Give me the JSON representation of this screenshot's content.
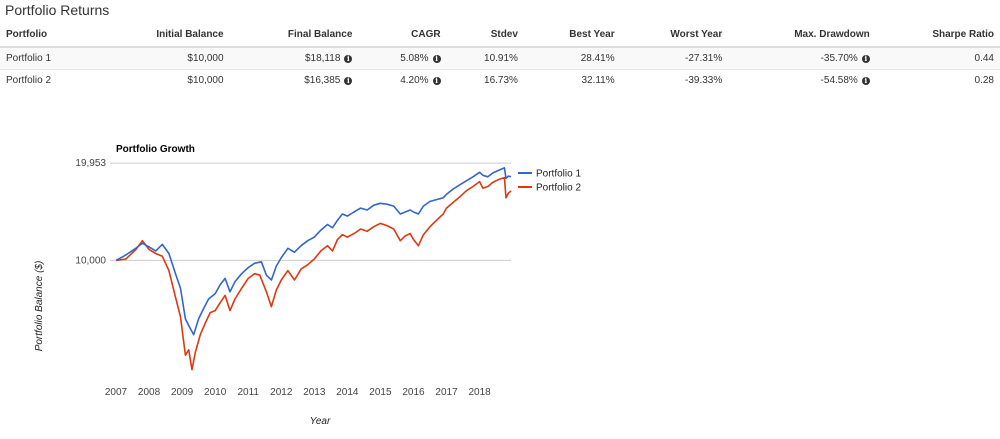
{
  "page_title": "Portfolio Returns",
  "table": {
    "headers": [
      "Portfolio",
      "Initial Balance",
      "Final Balance",
      "CAGR",
      "Stdev",
      "Best Year",
      "Worst Year",
      "Max. Drawdown",
      "Sharpe Ratio"
    ],
    "rows": [
      {
        "portfolio": "Portfolio 1",
        "initial": "$10,000",
        "final": "$18,118",
        "cagr": "5.08%",
        "stdev": "10.91%",
        "best": "28.41%",
        "worst": "-27.31%",
        "drawdown": "-35.70%",
        "sharpe": "0.44"
      },
      {
        "portfolio": "Portfolio 2",
        "initial": "$10,000",
        "final": "$16,385",
        "cagr": "4.20%",
        "stdev": "16.73%",
        "best": "32.11%",
        "worst": "-39.33%",
        "drawdown": "-54.58%",
        "sharpe": "0.28"
      }
    ],
    "info_icon": "info-circle-icon"
  },
  "chart_data": {
    "type": "line",
    "title": "Portfolio Growth",
    "xlabel": "Year",
    "ylabel": "Portfolio Balance ($)",
    "y_scale": "log",
    "ylim": [
      4400,
      20400
    ],
    "xlim": [
      2007.0,
      2018.95
    ],
    "y_ticks": [
      10000,
      19953
    ],
    "y_tick_labels": [
      "10,000",
      "19,953"
    ],
    "x_tick_labels": [
      "2007",
      "2008",
      "2009",
      "2010",
      "2011",
      "2012",
      "2013",
      "2014",
      "2015",
      "2016",
      "2017",
      "2018"
    ],
    "grid": true,
    "legend_position": "right",
    "series": [
      {
        "name": "Portfolio 1",
        "color": "#3366cc",
        "points": [
          [
            2007.0,
            10000
          ],
          [
            2007.3,
            10400
          ],
          [
            2007.6,
            10900
          ],
          [
            2007.8,
            11300
          ],
          [
            2008.0,
            11000
          ],
          [
            2008.2,
            10700
          ],
          [
            2008.4,
            11200
          ],
          [
            2008.6,
            10500
          ],
          [
            2008.8,
            9100
          ],
          [
            2008.95,
            8200
          ],
          [
            2009.1,
            6600
          ],
          [
            2009.2,
            6300
          ],
          [
            2009.35,
            5900
          ],
          [
            2009.5,
            6600
          ],
          [
            2009.65,
            7100
          ],
          [
            2009.8,
            7600
          ],
          [
            2010.0,
            7900
          ],
          [
            2010.15,
            8400
          ],
          [
            2010.3,
            8800
          ],
          [
            2010.45,
            8000
          ],
          [
            2010.6,
            8600
          ],
          [
            2010.8,
            9100
          ],
          [
            2011.0,
            9500
          ],
          [
            2011.2,
            9800
          ],
          [
            2011.4,
            9900
          ],
          [
            2011.55,
            9000
          ],
          [
            2011.7,
            8700
          ],
          [
            2011.85,
            9600
          ],
          [
            2012.0,
            10200
          ],
          [
            2012.2,
            10900
          ],
          [
            2012.4,
            10600
          ],
          [
            2012.6,
            11100
          ],
          [
            2012.8,
            11500
          ],
          [
            2013.0,
            11800
          ],
          [
            2013.2,
            12400
          ],
          [
            2013.4,
            12900
          ],
          [
            2013.55,
            12600
          ],
          [
            2013.7,
            13300
          ],
          [
            2013.85,
            13900
          ],
          [
            2014.0,
            13700
          ],
          [
            2014.2,
            14100
          ],
          [
            2014.4,
            14500
          ],
          [
            2014.6,
            14300
          ],
          [
            2014.8,
            14800
          ],
          [
            2015.0,
            15000
          ],
          [
            2015.2,
            14900
          ],
          [
            2015.4,
            14700
          ],
          [
            2015.6,
            13900
          ],
          [
            2015.75,
            14100
          ],
          [
            2015.9,
            14300
          ],
          [
            2016.0,
            14100
          ],
          [
            2016.15,
            13900
          ],
          [
            2016.3,
            14700
          ],
          [
            2016.5,
            15200
          ],
          [
            2016.7,
            15400
          ],
          [
            2016.9,
            15600
          ],
          [
            2017.0,
            16000
          ],
          [
            2017.2,
            16600
          ],
          [
            2017.4,
            17100
          ],
          [
            2017.6,
            17600
          ],
          [
            2017.8,
            18100
          ],
          [
            2018.0,
            18700
          ],
          [
            2018.1,
            18300
          ],
          [
            2018.25,
            18100
          ],
          [
            2018.4,
            18600
          ],
          [
            2018.6,
            19000
          ],
          [
            2018.75,
            19300
          ],
          [
            2018.8,
            17900
          ],
          [
            2018.87,
            18200
          ],
          [
            2018.95,
            18118
          ]
        ]
      },
      {
        "name": "Portfolio 2",
        "color": "#dc3912",
        "points": [
          [
            2007.0,
            10000
          ],
          [
            2007.3,
            10100
          ],
          [
            2007.6,
            10800
          ],
          [
            2007.8,
            11500
          ],
          [
            2008.0,
            10800
          ],
          [
            2008.2,
            10500
          ],
          [
            2008.4,
            10300
          ],
          [
            2008.6,
            9300
          ],
          [
            2008.8,
            7700
          ],
          [
            2008.95,
            6700
          ],
          [
            2009.1,
            5100
          ],
          [
            2009.2,
            5300
          ],
          [
            2009.3,
            4600
          ],
          [
            2009.4,
            5200
          ],
          [
            2009.55,
            5900
          ],
          [
            2009.7,
            6400
          ],
          [
            2009.85,
            6900
          ],
          [
            2010.0,
            7000
          ],
          [
            2010.15,
            7400
          ],
          [
            2010.3,
            7800
          ],
          [
            2010.45,
            7000
          ],
          [
            2010.6,
            7600
          ],
          [
            2010.8,
            8200
          ],
          [
            2011.0,
            8800
          ],
          [
            2011.2,
            9100
          ],
          [
            2011.35,
            9000
          ],
          [
            2011.55,
            8000
          ],
          [
            2011.7,
            7200
          ],
          [
            2011.85,
            8100
          ],
          [
            2012.0,
            8700
          ],
          [
            2012.2,
            9300
          ],
          [
            2012.4,
            8700
          ],
          [
            2012.6,
            9400
          ],
          [
            2012.8,
            9700
          ],
          [
            2013.0,
            10100
          ],
          [
            2013.2,
            10700
          ],
          [
            2013.4,
            11100
          ],
          [
            2013.55,
            10700
          ],
          [
            2013.7,
            11600
          ],
          [
            2013.85,
            12000
          ],
          [
            2014.0,
            11800
          ],
          [
            2014.2,
            12100
          ],
          [
            2014.4,
            12500
          ],
          [
            2014.6,
            12300
          ],
          [
            2014.8,
            12700
          ],
          [
            2015.0,
            13000
          ],
          [
            2015.2,
            12800
          ],
          [
            2015.4,
            12500
          ],
          [
            2015.6,
            11500
          ],
          [
            2015.75,
            11900
          ],
          [
            2015.9,
            12100
          ],
          [
            2016.0,
            11600
          ],
          [
            2016.15,
            11100
          ],
          [
            2016.3,
            12000
          ],
          [
            2016.5,
            12700
          ],
          [
            2016.7,
            13300
          ],
          [
            2016.9,
            13900
          ],
          [
            2017.0,
            14500
          ],
          [
            2017.2,
            15100
          ],
          [
            2017.4,
            15700
          ],
          [
            2017.6,
            16400
          ],
          [
            2017.8,
            16900
          ],
          [
            2018.0,
            17500
          ],
          [
            2018.1,
            16700
          ],
          [
            2018.25,
            16900
          ],
          [
            2018.4,
            17400
          ],
          [
            2018.6,
            17800
          ],
          [
            2018.75,
            18000
          ],
          [
            2018.8,
            15600
          ],
          [
            2018.87,
            16100
          ],
          [
            2018.95,
            16385
          ]
        ]
      }
    ]
  }
}
